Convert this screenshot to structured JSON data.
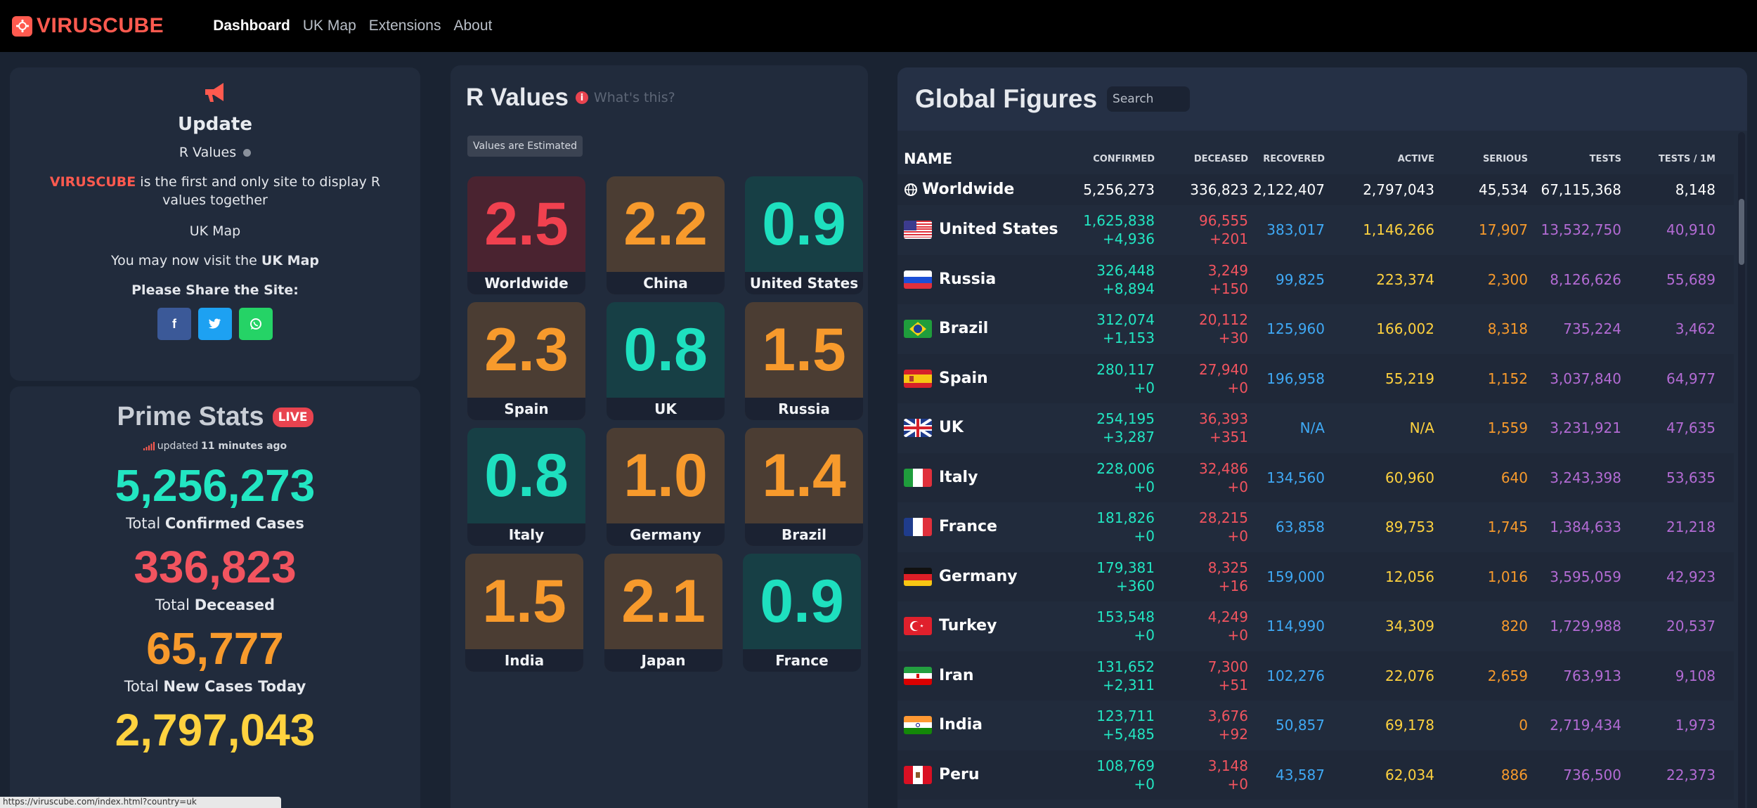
{
  "nav": {
    "brand": "VIRUSCUBE",
    "links": [
      "Dashboard",
      "UK Map",
      "Extensions",
      "About"
    ],
    "active": "Dashboard"
  },
  "update": {
    "title": "Update",
    "r_values_label": "R Values",
    "brand_word": "VIRUSCUBE",
    "first_line_rest": " is the first and only site to display R values together",
    "uk_map_heading": "UK Map",
    "visit_prefix": "You may now visit the ",
    "visit_link": "UK Map",
    "share_label": "Please Share the Site:",
    "share_buttons": [
      {
        "icon": "facebook-icon",
        "glyph": "f",
        "color": "#3b5998"
      },
      {
        "icon": "twitter-icon",
        "glyph": "t",
        "color": "#1da1f2"
      },
      {
        "icon": "whatsapp-icon",
        "glyph": "w",
        "color": "#25d366"
      }
    ]
  },
  "prime": {
    "title": "Prime Stats",
    "live": "LIVE",
    "updated_prefix": "updated ",
    "updated_time": "11 minutes ago",
    "stats": [
      {
        "value": "5,256,273",
        "prefix": "Total ",
        "bold": "Confirmed Cases",
        "color": "#22e6c2"
      },
      {
        "value": "336,823",
        "prefix": "Total ",
        "bold": "Deceased",
        "color": "#f2545f"
      },
      {
        "value": "65,777",
        "prefix": "Total ",
        "bold": "New Cases Today",
        "color": "#f79a2c"
      },
      {
        "value": "2,797,043",
        "prefix": "",
        "bold": "",
        "color": "#ffd23f"
      }
    ]
  },
  "r_values": {
    "title": "R Values",
    "whats_this": "What's this?",
    "badge": "Values are Estimated",
    "cards": [
      {
        "value": "2.5",
        "name": "Worldwide",
        "tone": "red"
      },
      {
        "value": "2.2",
        "name": "China",
        "tone": "orange"
      },
      {
        "value": "0.9",
        "name": "United States",
        "tone": "teal"
      },
      {
        "value": "2.3",
        "name": "Spain",
        "tone": "orange"
      },
      {
        "value": "0.8",
        "name": "UK",
        "tone": "teal"
      },
      {
        "value": "1.5",
        "name": "Russia",
        "tone": "orange"
      },
      {
        "value": "0.8",
        "name": "Italy",
        "tone": "teal"
      },
      {
        "value": "1.0",
        "name": "Germany",
        "tone": "orange"
      },
      {
        "value": "1.4",
        "name": "Brazil",
        "tone": "orange"
      },
      {
        "value": "1.5",
        "name": "India",
        "tone": "orange"
      },
      {
        "value": "2.1",
        "name": "Japan",
        "tone": "orange"
      },
      {
        "value": "0.9",
        "name": "France",
        "tone": "teal"
      }
    ]
  },
  "global": {
    "title": "Global Figures",
    "search_placeholder": "Search",
    "headers": [
      "NAME",
      "CONFIRMED",
      "DECEASED",
      "RECOVERED",
      "ACTIVE",
      "SERIOUS",
      "TESTS",
      "TESTS / 1M"
    ],
    "worldwide": {
      "name": "Worldwide",
      "confirmed": "5,256,273",
      "deceased": "336,823",
      "recovered": "2,122,407",
      "active": "2,797,043",
      "serious": "45,534",
      "tests": "67,115,368",
      "tests_per_m": "8,148"
    },
    "rows": [
      {
        "name": "United States",
        "flag": "us",
        "confirmed": "1,625,838",
        "confirmed_new": "+4,936",
        "deceased": "96,555",
        "deceased_new": "+201",
        "recovered": "383,017",
        "active": "1,146,266",
        "serious": "17,907",
        "tests": "13,532,750",
        "tests_per_m": "40,910"
      },
      {
        "name": "Russia",
        "flag": "ru",
        "confirmed": "326,448",
        "confirmed_new": "+8,894",
        "deceased": "3,249",
        "deceased_new": "+150",
        "recovered": "99,825",
        "active": "223,374",
        "serious": "2,300",
        "tests": "8,126,626",
        "tests_per_m": "55,689"
      },
      {
        "name": "Brazil",
        "flag": "br",
        "confirmed": "312,074",
        "confirmed_new": "+1,153",
        "deceased": "20,112",
        "deceased_new": "+30",
        "recovered": "125,960",
        "active": "166,002",
        "serious": "8,318",
        "tests": "735,224",
        "tests_per_m": "3,462"
      },
      {
        "name": "Spain",
        "flag": "es",
        "confirmed": "280,117",
        "confirmed_new": "+0",
        "deceased": "27,940",
        "deceased_new": "+0",
        "recovered": "196,958",
        "active": "55,219",
        "serious": "1,152",
        "tests": "3,037,840",
        "tests_per_m": "64,977"
      },
      {
        "name": "UK",
        "flag": "uk",
        "confirmed": "254,195",
        "confirmed_new": "+3,287",
        "deceased": "36,393",
        "deceased_new": "+351",
        "recovered": "N/A",
        "active": "N/A",
        "serious": "1,559",
        "tests": "3,231,921",
        "tests_per_m": "47,635"
      },
      {
        "name": "Italy",
        "flag": "it",
        "confirmed": "228,006",
        "confirmed_new": "+0",
        "deceased": "32,486",
        "deceased_new": "+0",
        "recovered": "134,560",
        "active": "60,960",
        "serious": "640",
        "tests": "3,243,398",
        "tests_per_m": "53,635"
      },
      {
        "name": "France",
        "flag": "fr",
        "confirmed": "181,826",
        "confirmed_new": "+0",
        "deceased": "28,215",
        "deceased_new": "+0",
        "recovered": "63,858",
        "active": "89,753",
        "serious": "1,745",
        "tests": "1,384,633",
        "tests_per_m": "21,218"
      },
      {
        "name": "Germany",
        "flag": "de",
        "confirmed": "179,381",
        "confirmed_new": "+360",
        "deceased": "8,325",
        "deceased_new": "+16",
        "recovered": "159,000",
        "active": "12,056",
        "serious": "1,016",
        "tests": "3,595,059",
        "tests_per_m": "42,923"
      },
      {
        "name": "Turkey",
        "flag": "tr",
        "confirmed": "153,548",
        "confirmed_new": "+0",
        "deceased": "4,249",
        "deceased_new": "+0",
        "recovered": "114,990",
        "active": "34,309",
        "serious": "820",
        "tests": "1,729,988",
        "tests_per_m": "20,537"
      },
      {
        "name": "Iran",
        "flag": "ir",
        "confirmed": "131,652",
        "confirmed_new": "+2,311",
        "deceased": "7,300",
        "deceased_new": "+51",
        "recovered": "102,276",
        "active": "22,076",
        "serious": "2,659",
        "tests": "763,913",
        "tests_per_m": "9,108"
      },
      {
        "name": "India",
        "flag": "in",
        "confirmed": "123,711",
        "confirmed_new": "+5,485",
        "deceased": "3,676",
        "deceased_new": "+92",
        "recovered": "50,857",
        "active": "69,178",
        "serious": "0",
        "tests": "2,719,434",
        "tests_per_m": "1,973"
      },
      {
        "name": "Peru",
        "flag": "pe",
        "confirmed": "108,769",
        "confirmed_new": "+0",
        "deceased": "3,148",
        "deceased_new": "+0",
        "recovered": "43,587",
        "active": "62,034",
        "serious": "886",
        "tests": "736,500",
        "tests_per_m": "22,373"
      }
    ]
  },
  "status_bar": "https://viruscube.com/index.html?country=uk"
}
